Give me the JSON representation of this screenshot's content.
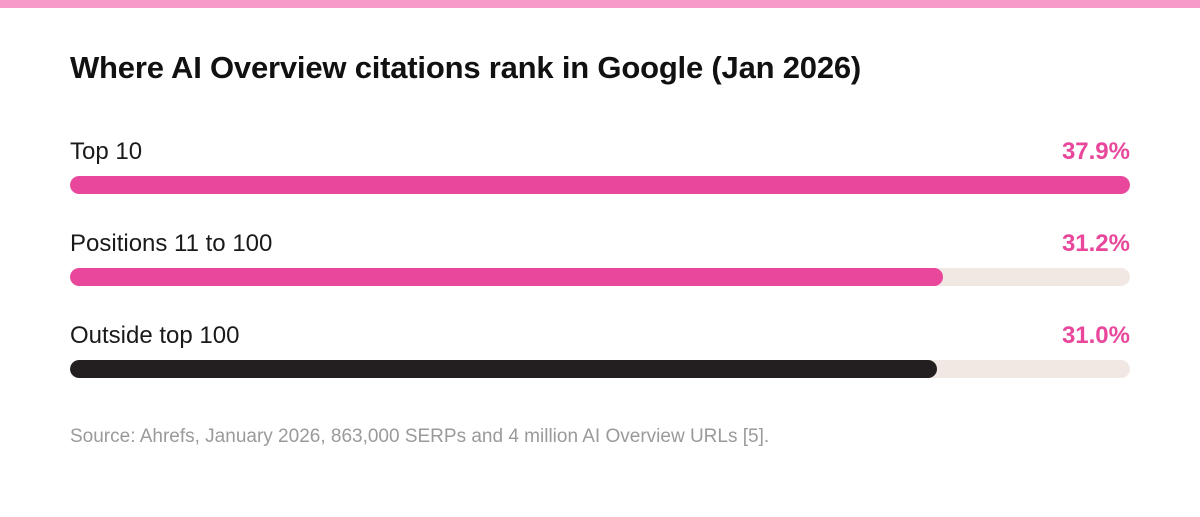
{
  "colors": {
    "stripe": "#f79ac9",
    "accent": "#e8479b",
    "dark": "#231f20",
    "track": "#f1e8e4"
  },
  "chart_data": {
    "type": "bar",
    "orientation": "horizontal",
    "title": "Where AI Overview citations rank in Google (Jan 2026)",
    "categories": [
      "Top 10",
      "Positions 11 to 100",
      "Outside top 100"
    ],
    "values": [
      37.9,
      31.2,
      31.0
    ],
    "value_labels": [
      "37.9%",
      "31.2%",
      "31.0%"
    ],
    "bar_colors": [
      "#e8479b",
      "#e8479b",
      "#231f20"
    ],
    "xlim": [
      0,
      37.9
    ],
    "grid": false,
    "source": "Source: Ahrefs, January 2026, 863,000 SERPs and 4 million AI Overview URLs [5]."
  }
}
